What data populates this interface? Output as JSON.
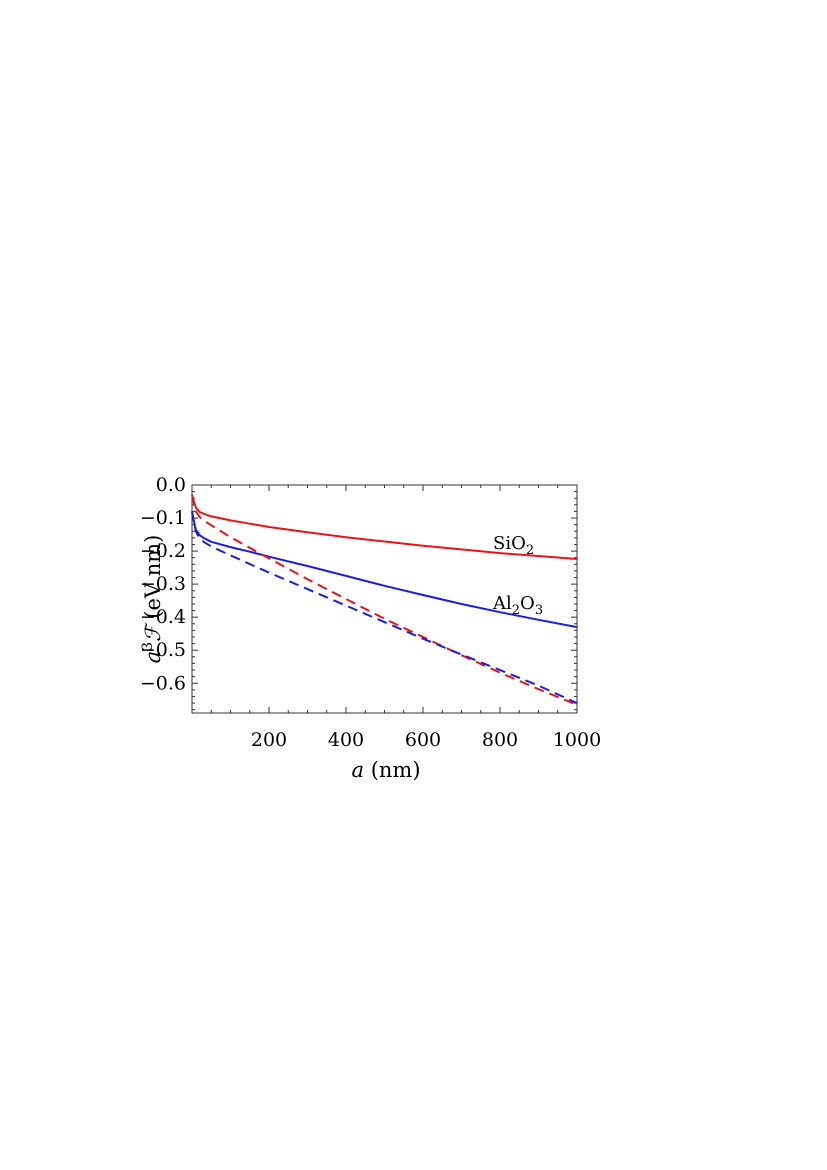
{
  "chart_data": {
    "type": "line",
    "xlabel": {
      "var": "a",
      "unit": "(nm)"
    },
    "ylabel": {
      "var": "a",
      "sup": "3",
      "sym": "ℱ",
      "unit": "(eV nm)"
    },
    "xlim": [
      0,
      1000
    ],
    "ylim": [
      -0.69,
      0.0
    ],
    "x_ticks": [
      200,
      400,
      600,
      800,
      1000
    ],
    "y_ticks": [
      0.0,
      -0.1,
      -0.2,
      -0.3,
      -0.4,
      -0.5,
      -0.6
    ],
    "y_tick_labels": [
      "0.0",
      "−0.1",
      "−0.2",
      "−0.3",
      "−0.4",
      "−0.5",
      "−0.6"
    ],
    "x_tick_labels": [
      "200",
      "400",
      "600",
      "800",
      "1000"
    ],
    "grid": false,
    "annotations": [
      {
        "series": "SiO2",
        "base": "SiO",
        "sub": "2"
      },
      {
        "series": "Al2O3",
        "parts": [
          [
            "Al",
            "2"
          ],
          [
            "O",
            "3"
          ]
        ]
      }
    ],
    "series": [
      {
        "name": "SiO2",
        "color": "#e8141c",
        "dash": "solid",
        "x": [
          0,
          5,
          10,
          20,
          30,
          50,
          100,
          150,
          200,
          300,
          400,
          500,
          600,
          700,
          800,
          900,
          1000
        ],
        "y": [
          -0.03,
          -0.05,
          -0.068,
          -0.082,
          -0.087,
          -0.095,
          -0.107,
          -0.117,
          -0.127,
          -0.143,
          -0.158,
          -0.171,
          -0.184,
          -0.195,
          -0.206,
          -0.215,
          -0.224
        ]
      },
      {
        "name": "Al2O3",
        "color": "#1a1ee0",
        "dash": "solid",
        "x": [
          0,
          5,
          10,
          20,
          30,
          50,
          100,
          150,
          200,
          300,
          400,
          500,
          600,
          700,
          800,
          900,
          1000
        ],
        "y": [
          -0.08,
          -0.11,
          -0.135,
          -0.152,
          -0.16,
          -0.172,
          -0.188,
          -0.202,
          -0.217,
          -0.245,
          -0.275,
          -0.305,
          -0.333,
          -0.36,
          -0.385,
          -0.408,
          -0.43
        ]
      },
      {
        "name": "SiO2 (dashed)",
        "color": "#e8141c",
        "dash": "dashed",
        "x": [
          0,
          10,
          20,
          30,
          50,
          100,
          200,
          300,
          400,
          500,
          600,
          700,
          800,
          900,
          1000
        ],
        "y": [
          -0.03,
          -0.08,
          -0.097,
          -0.107,
          -0.122,
          -0.158,
          -0.222,
          -0.285,
          -0.345,
          -0.405,
          -0.46,
          -0.515,
          -0.568,
          -0.618,
          -0.665
        ]
      },
      {
        "name": "Al2O3 (dashed)",
        "color": "#1a1ee0",
        "dash": "dashed",
        "x": [
          0,
          10,
          20,
          30,
          50,
          100,
          200,
          300,
          400,
          500,
          600,
          700,
          800,
          900,
          1000
        ],
        "y": [
          -0.08,
          -0.14,
          -0.162,
          -0.172,
          -0.186,
          -0.213,
          -0.265,
          -0.315,
          -0.365,
          -0.415,
          -0.465,
          -0.513,
          -0.56,
          -0.607,
          -0.66
        ]
      }
    ]
  }
}
